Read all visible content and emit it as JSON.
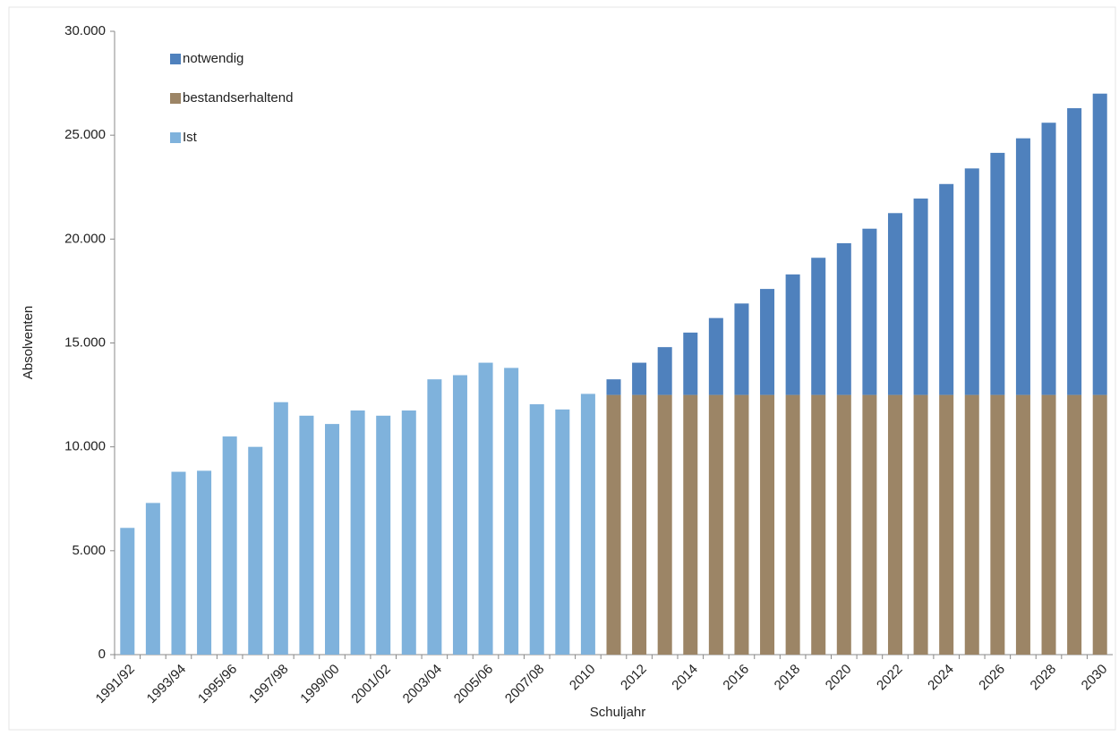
{
  "chart_data": {
    "type": "bar",
    "stacked": true,
    "x_label": "Schuljahr",
    "y_label": "Absolventen",
    "categories": [
      "1991/92",
      null,
      "1993/94",
      null,
      "1995/96",
      null,
      "1997/98",
      null,
      "1999/00",
      null,
      "2001/02",
      null,
      "2003/04",
      null,
      "2005/06",
      null,
      "2007/08",
      null,
      "2010",
      null,
      "2012",
      null,
      "2014",
      null,
      "2016",
      null,
      "2018",
      null,
      "2020",
      null,
      "2022",
      null,
      "2024",
      null,
      "2026",
      null,
      "2028",
      null,
      "2030"
    ],
    "series": [
      {
        "name": "notwendig",
        "color": "#4f81bd",
        "values": [
          null,
          null,
          null,
          null,
          null,
          null,
          null,
          null,
          null,
          null,
          null,
          null,
          null,
          null,
          null,
          null,
          null,
          null,
          null,
          750,
          1550,
          2300,
          3000,
          3700,
          4400,
          5100,
          5800,
          6600,
          7300,
          8000,
          8750,
          9450,
          10150,
          10900,
          11650,
          12350,
          13100,
          13800,
          14500
        ]
      },
      {
        "name": "bestandserhaltend",
        "color": "#9c8566",
        "values": [
          null,
          null,
          null,
          null,
          null,
          null,
          null,
          null,
          null,
          null,
          null,
          null,
          null,
          null,
          null,
          null,
          null,
          null,
          null,
          12500,
          12500,
          12500,
          12500,
          12500,
          12500,
          12500,
          12500,
          12500,
          12500,
          12500,
          12500,
          12500,
          12500,
          12500,
          12500,
          12500,
          12500,
          12500,
          12500
        ]
      },
      {
        "name": "Ist",
        "color": "#7fb2dc",
        "values": [
          6100,
          7300,
          8800,
          8850,
          10500,
          10000,
          12150,
          11500,
          11100,
          11750,
          11500,
          11750,
          13250,
          13450,
          14050,
          13800,
          12050,
          11800,
          12550,
          null,
          null,
          null,
          null,
          null,
          null,
          null,
          null,
          null,
          null,
          null,
          null,
          null,
          null,
          null,
          null,
          null,
          null,
          null,
          null
        ]
      }
    ],
    "ylim": [
      0,
      30000
    ],
    "yticks": [
      0,
      {
        "value": 5000,
        "label": "5.000"
      },
      {
        "value": 10000,
        "label": "10.000"
      },
      {
        "value": 15000,
        "label": "15.000"
      },
      {
        "value": 20000,
        "label": "20.000"
      },
      {
        "value": 25000,
        "label": "25.000"
      },
      {
        "value": 30000,
        "label": "30.000"
      }
    ],
    "grid": false,
    "legend": "top-left"
  }
}
